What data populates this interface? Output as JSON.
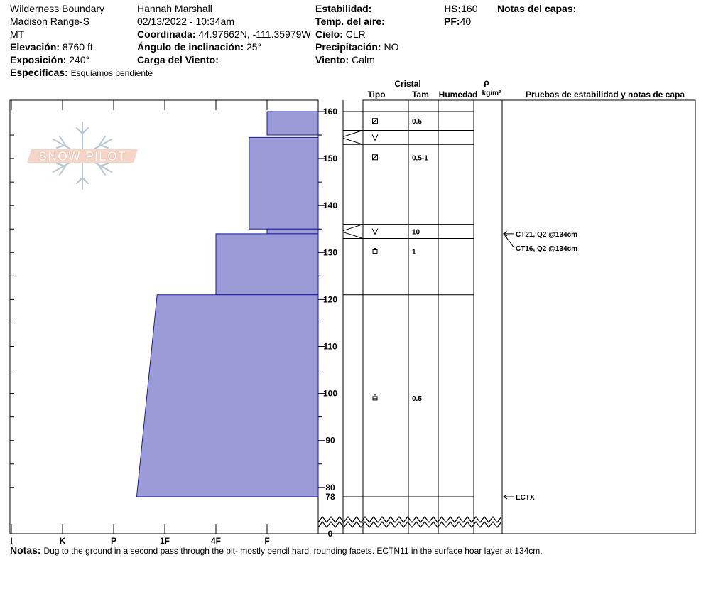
{
  "header": {
    "location": "Wilderness Boundary",
    "range": "Madison Range-S",
    "state": "MT",
    "elevation_label": "Elevación:",
    "elevation_value": "8760 ft",
    "aspect_label": "Exposición:",
    "aspect_value": "240°",
    "specifics_label": "Especificas:",
    "specifics_value": "Esquiamos pendiente",
    "observer": "Hannah Marshall",
    "datetime": "02/13/2022 - 10:34am",
    "coord_label": "Coordinada:",
    "coord_value": "44.97662N, -111.35979W",
    "slope_label": "Ángulo de inclinación:",
    "slope_value": "25°",
    "wind_load_label": "Carga del Viento:",
    "wind_load_value": "",
    "stability_label": "Estabilidad:",
    "stability_value": "",
    "air_temp_label": "Temp. del aire:",
    "air_temp_value": "",
    "sky_label": "Cielo:",
    "sky_value": "CLR",
    "precip_label": "Precipitación:",
    "precip_value": "NO",
    "wind_label": "Viento:",
    "wind_value": "Calm",
    "hs_label": "HS:",
    "hs_value": "160",
    "pf_label": "PF:",
    "pf_value": "40",
    "layer_notes_label": "Notas del capas:"
  },
  "logo_text": "SNOW PILOT",
  "columns": {
    "crystal": "Cristal",
    "type": "Tipo",
    "size": "Tam",
    "moisture": "Humedad",
    "density_symbol": "ρ",
    "density_unit": "kg/m³",
    "tests": "Pruebas de estabilidad y notas de capa"
  },
  "chart_data": {
    "type": "bar",
    "hardness_categories": [
      "I",
      "K",
      "P",
      "1F",
      "4F",
      "F"
    ],
    "height_axis": {
      "ticks": [
        160,
        150,
        140,
        130,
        120,
        110,
        100,
        90,
        80,
        78,
        0
      ],
      "max": 160,
      "break_below": 78
    },
    "hardness_layers": [
      {
        "top": 160,
        "bottom": 155,
        "hardness_top": 1.0,
        "hardness_bottom": 1.0
      },
      {
        "top": 155,
        "bottom": 154.5,
        "hardness_top": 0.0,
        "hardness_bottom": 0.0
      },
      {
        "top": 154.5,
        "bottom": 135,
        "hardness_top": 1.35,
        "hardness_bottom": 1.35
      },
      {
        "top": 135,
        "bottom": 134,
        "hardness_top": 1.0,
        "hardness_bottom": 1.0
      },
      {
        "top": 134,
        "bottom": 121,
        "hardness_top": 2.0,
        "hardness_bottom": 2.0
      },
      {
        "top": 121,
        "bottom": 78,
        "hardness_top": 3.15,
        "hardness_bottom": 3.55
      }
    ],
    "layers": [
      {
        "top": 160,
        "bottom": 156,
        "type_icon": "decomposing-icon",
        "size": "0.5"
      },
      {
        "top": 156,
        "bottom": 153,
        "type_icon": "surface-hoar-icon",
        "size": ""
      },
      {
        "top": 153,
        "bottom": 136,
        "type_icon": "decomposing-icon",
        "size": "0.5-1"
      },
      {
        "top": 136,
        "bottom": 133,
        "type_icon": "surface-hoar-icon",
        "size": "10"
      },
      {
        "top": 133,
        "bottom": 121,
        "type_icon": "rounding-facet-icon",
        "size": "1"
      },
      {
        "top": 121,
        "bottom": 78,
        "type_icon": "rounding-facet-icon",
        "size": "0.5"
      }
    ],
    "tests": [
      {
        "height": 134,
        "label": "CT21, Q2 @134cm"
      },
      {
        "height": 134,
        "label": "CT16, Q2 @134cm"
      },
      {
        "height": 78,
        "label": "ECTX"
      }
    ]
  },
  "notes": {
    "label": "Notas:",
    "text": "Dug to the ground in a second pass through the pit- mostly pencil hard, rounding facets. ECTN11 in the surface hoar layer at 134cm."
  }
}
